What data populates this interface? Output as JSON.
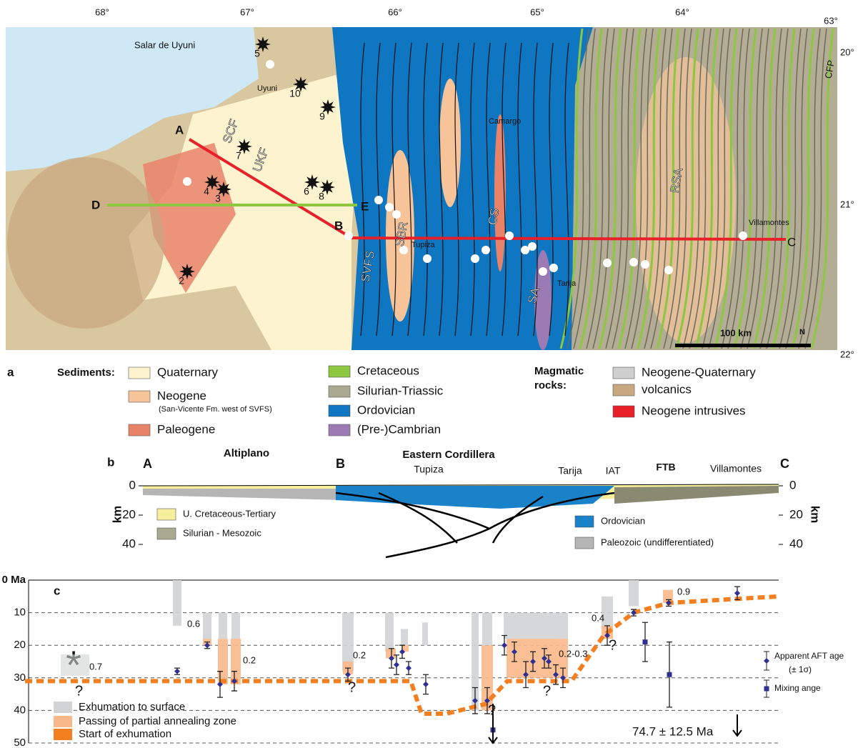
{
  "map": {
    "longitudes": [
      "68°",
      "67°",
      "66°",
      "65°",
      "64°",
      "63°"
    ],
    "latitudes": [
      "20°",
      "21°",
      "22°"
    ],
    "places": [
      "Salar de Uyuni",
      "Uyuni",
      "Camargo",
      "Tupiza",
      "Tarija",
      "Villamontes"
    ],
    "faults": [
      "SCF",
      "UKF",
      "SVFS",
      "SBR",
      "CS",
      "SA",
      "RSA",
      "CFP"
    ],
    "section_points": [
      "A",
      "B",
      "C",
      "D",
      "E"
    ],
    "stars": [
      "2",
      "3",
      "4",
      "5",
      "6",
      "7",
      "8",
      "9",
      "10"
    ],
    "scale": "100 km",
    "north": "N"
  },
  "legend": {
    "panel": "a",
    "sediments_title": "Sediments:",
    "magmatic_title": [
      "Magmatic",
      "rocks:"
    ],
    "note": "(San-Vicente Fm. west of SVFS)",
    "items": [
      {
        "name": "Quaternary",
        "color": "#fdf3cf"
      },
      {
        "name": "Neogene",
        "color": "#f7c49a"
      },
      {
        "name": "Paleogene",
        "color": "#e8836a"
      },
      {
        "name": "Cretaceous",
        "color": "#8dc63f"
      },
      {
        "name": "Silurian-Triassic",
        "color": "#a9a98f"
      },
      {
        "name": "Ordovician",
        "color": "#0f76c1"
      },
      {
        "name": "(Pre-)Cambrian",
        "color": "#9c7bb5"
      },
      {
        "name": "Neogene-Quaternary",
        "color": "#cfcfcf"
      },
      {
        "name": "volcanics",
        "color": "#c9a77f"
      },
      {
        "name": "Neogene intrusives",
        "color": "#e8202a"
      }
    ]
  },
  "section": {
    "panel": "b",
    "points": [
      "A",
      "B",
      "C"
    ],
    "labels": [
      "Altiplano",
      "Eastern Cordillera",
      "Tupiza",
      "Tarija",
      "IAT",
      "FTB",
      "Villamontes"
    ],
    "depth_ticks": [
      0,
      20,
      40
    ],
    "depth_unit": "km",
    "legend": [
      {
        "name": "U. Cretaceous-Tertiary",
        "color": "#f7ef9c"
      },
      {
        "name": "Silurian - Mesozoic",
        "color": "#a9a98f"
      },
      {
        "name": "Ordovician",
        "color": "#1a82c9"
      },
      {
        "name": "Paleozoic (undifferentiated)",
        "color": "#b5b5b5"
      }
    ]
  },
  "chart_data": {
    "type": "errorbar",
    "panel": "c",
    "ylim": [
      0,
      50
    ],
    "yticks": [
      {
        "value": 0,
        "label": "0 Ma"
      },
      10,
      20,
      30,
      40,
      50
    ],
    "grid": true,
    "series": [
      {
        "name": "Apparent AFT age",
        "color": "#2e3192",
        "values": [
          28,
          20,
          32,
          31,
          29,
          24,
          26,
          22,
          27,
          32,
          37,
          37,
          20,
          22,
          29,
          25,
          24,
          25,
          29,
          30,
          17,
          10,
          7,
          4
        ],
        "errors": [
          1,
          1,
          4,
          3,
          2,
          3,
          3,
          2,
          2,
          3,
          4,
          4,
          3,
          3,
          4,
          3,
          3,
          2,
          3,
          3,
          3,
          1,
          1,
          2
        ]
      },
      {
        "name": "Mixing ange",
        "color": "#2e3192",
        "values": [
          46,
          19,
          29
        ],
        "errors": [
          null,
          6,
          10
        ]
      }
    ],
    "error_note": "(± 1σ)",
    "ranges": [
      {
        "name": "Exhumation to surface",
        "color": "#d1d3d4",
        "values": [
          [
            0,
            14
          ],
          [
            10,
            18
          ],
          [
            10,
            18
          ],
          [
            10,
            18
          ],
          [
            10,
            28
          ],
          [
            10,
            22
          ],
          [
            15,
            20
          ],
          [
            13,
            20
          ],
          [
            10,
            40
          ],
          [
            10,
            20
          ],
          [
            10,
            18
          ],
          [
            5,
            15
          ],
          [
            0,
            8
          ]
        ]
      },
      {
        "name": "Passing of partial annealing zone",
        "color": "#f9b88a",
        "values": [
          [
            18,
            20
          ],
          [
            18,
            32
          ],
          [
            18,
            32
          ],
          [
            25,
            29
          ],
          [
            21,
            24
          ],
          [
            20,
            22
          ],
          [
            20,
            40
          ],
          [
            18,
            30
          ],
          [
            14,
            18
          ],
          [
            3,
            7
          ]
        ]
      },
      {
        "name": "Start of exhumation",
        "color": "#f47f20",
        "values": [
          31,
          31,
          31,
          31,
          41,
          41,
          38,
          31,
          31,
          17,
          10,
          7,
          5
        ]
      }
    ],
    "annotations": [
      "0.7",
      "0.6",
      "0.2",
      "0.2",
      "0.2-0.3",
      "0.4",
      "0.9",
      "74.7 ± 12.5 Ma",
      "?",
      "?",
      "?",
      "?",
      "?",
      "*"
    ]
  }
}
